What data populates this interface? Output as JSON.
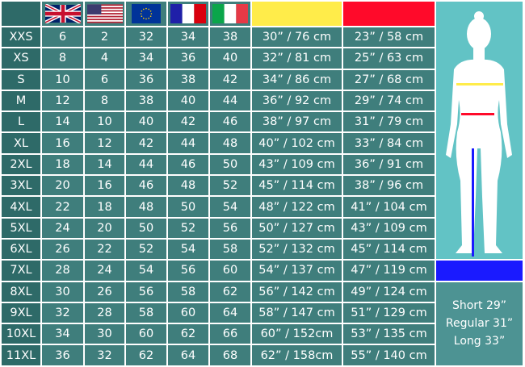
{
  "header": {
    "flags": [
      "uk-flag",
      "us-flag",
      "eu-flag",
      "france-flag",
      "italy-flag"
    ],
    "bust_color": "#ffec4a",
    "waist_color": "#ff0a2a"
  },
  "rows": [
    [
      "XXS",
      "6",
      "2",
      "32",
      "34",
      "38",
      "30” / 76 cm",
      "23” / 58 cm"
    ],
    [
      "XS",
      "8",
      "4",
      "34",
      "36",
      "40",
      "32” / 81 cm",
      "25” / 63 cm"
    ],
    [
      "S",
      "10",
      "6",
      "36",
      "38",
      "42",
      "34” / 86 cm",
      "27” / 68 cm"
    ],
    [
      "M",
      "12",
      "8",
      "38",
      "40",
      "44",
      "36” / 92 cm",
      "29” / 74 cm"
    ],
    [
      "L",
      "14",
      "10",
      "40",
      "42",
      "46",
      "38” / 97 cm",
      "31” / 79 cm"
    ],
    [
      "XL",
      "16",
      "12",
      "42",
      "44",
      "48",
      "40” / 102 cm",
      "33” / 84 cm"
    ],
    [
      "2XL",
      "18",
      "14",
      "44",
      "46",
      "50",
      "43” / 109 cm",
      "36” / 91 cm"
    ],
    [
      "3XL",
      "20",
      "16",
      "46",
      "48",
      "52",
      "45” / 114 cm",
      "38” / 96 cm"
    ],
    [
      "4XL",
      "22",
      "18",
      "48",
      "50",
      "54",
      "48” / 122 cm",
      "41” / 104 cm"
    ],
    [
      "5XL",
      "24",
      "20",
      "50",
      "52",
      "56",
      "50” / 127 cm",
      "43” / 109 cm"
    ],
    [
      "6XL",
      "26",
      "22",
      "52",
      "54",
      "58",
      "52” / 132 cm",
      "45” / 114 cm"
    ],
    [
      "7XL",
      "28",
      "24",
      "54",
      "56",
      "60",
      "54” / 137 cm",
      "47” / 119 cm"
    ],
    [
      "8XL",
      "30",
      "26",
      "56",
      "58",
      "62",
      "56” / 142 cm",
      "49” / 124 cm"
    ],
    [
      "9XL",
      "32",
      "28",
      "58",
      "60",
      "64",
      "58” / 147 cm",
      "51” / 129 cm"
    ],
    [
      "10XL",
      "34",
      "30",
      "60",
      "62",
      "66",
      "60” / 152cm",
      "53” / 135 cm"
    ],
    [
      "11XL",
      "36",
      "32",
      "62",
      "64",
      "68",
      "62” / 158cm",
      "55” / 140 cm"
    ]
  ],
  "inseam": {
    "color": "#1a1aff",
    "options": [
      "Short 29”",
      "Regular 31”",
      "Long 33”"
    ]
  }
}
